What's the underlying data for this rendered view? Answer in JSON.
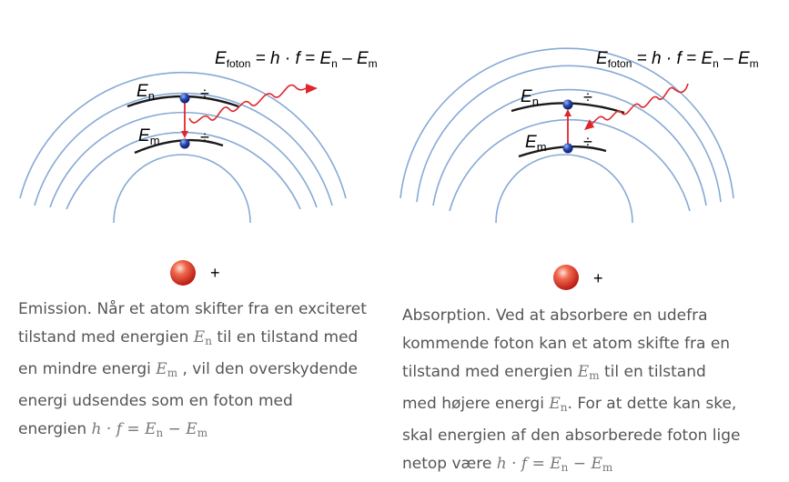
{
  "emission": {
    "formula": {
      "lhs_main": "E",
      "lhs_sub": "foton",
      "mid": " = h · f = ",
      "en": "E",
      "en_sub": "n",
      "minus": " – ",
      "em": "E",
      "em_sub": "m"
    },
    "level_upper": {
      "main": "E",
      "sub": "n"
    },
    "level_lower": {
      "main": "E",
      "sub": "m"
    },
    "minus_sign": "÷",
    "plus_sign": "+",
    "caption": {
      "line1": "Emission. Når et atom skifter fra en exciteret",
      "line2_a": "tilstand med energien ",
      "line2_b": " til en tilstand med",
      "line3_a": "en mindre energi ",
      "line3_b": " , vil den overskydende",
      "line4": "energi udsendes som en foton med",
      "line5_a": "energien "
    }
  },
  "absorption": {
    "formula": {
      "lhs_main": "E",
      "lhs_sub": "foton",
      "mid": " = h · f = ",
      "en": "E",
      "en_sub": "n",
      "minus": " – ",
      "em": "E",
      "em_sub": "m"
    },
    "level_upper": {
      "main": "E",
      "sub": "n"
    },
    "level_lower": {
      "main": "E",
      "sub": "m"
    },
    "minus_sign": "÷",
    "plus_sign": "+",
    "caption": {
      "line1": "Absorption. Ved at absorbere en udefra",
      "line2": "kommende foton kan et atom skifte fra en",
      "line3_a": "tilstand med energien ",
      "line3_b": " til en tilstand",
      "line4_a": "med højere energi ",
      "line4_b": ". For at dette kan ske,",
      "line5": "skal energien af den absorberede foton lige",
      "line6_a": "netop være "
    }
  },
  "math": {
    "E": "E",
    "n": "n",
    "m": "m",
    "hf_eq": "h · f = ",
    "minus": " − "
  },
  "colors": {
    "orbit": "#86a9d6",
    "level": "#1a1a1a",
    "photon": "#e0262b",
    "electron": "#1f3a9a",
    "nucleus": "#d82a1e"
  }
}
